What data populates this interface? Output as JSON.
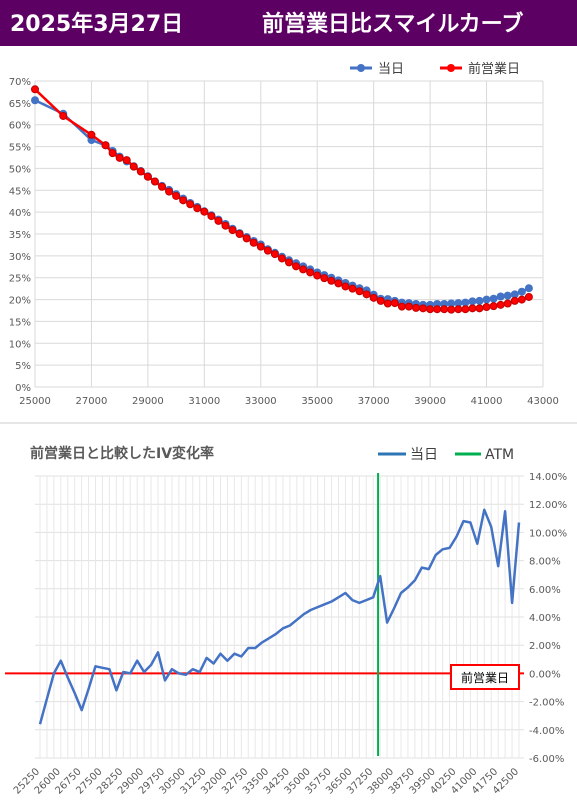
{
  "header": {
    "date": "2025年3月27日",
    "title": "前営業日比スマイルカーブ",
    "background_color": "#5c0063"
  },
  "chart_data": [
    {
      "type": "line",
      "title": "",
      "xlabel": "",
      "ylabel": "",
      "xlim": [
        25000,
        43000
      ],
      "ylim": [
        0,
        0.7
      ],
      "x_ticks": [
        "25000",
        "27000",
        "29000",
        "31000",
        "33000",
        "35000",
        "37000",
        "39000",
        "41000",
        "43000"
      ],
      "y_ticks": [
        "0%",
        "5%",
        "10%",
        "15%",
        "20%",
        "25%",
        "30%",
        "35%",
        "40%",
        "45%",
        "50%",
        "55%",
        "60%",
        "65%",
        "70%"
      ],
      "grid": true,
      "legend_position": "top",
      "series": [
        {
          "name": "当日",
          "color": "#4472c4",
          "x": [
            25000,
            26000,
            27000,
            27500,
            27750,
            28000,
            28250,
            28500,
            28750,
            29000,
            29250,
            29500,
            29750,
            30000,
            30250,
            30500,
            30750,
            31000,
            31250,
            31500,
            31750,
            32000,
            32250,
            32500,
            32750,
            33000,
            33250,
            33500,
            33750,
            34000,
            34250,
            34500,
            34750,
            35000,
            35250,
            35500,
            35750,
            36000,
            36250,
            36500,
            36750,
            37000,
            37250,
            37500,
            37750,
            38000,
            38250,
            38500,
            38750,
            39000,
            39250,
            39500,
            39750,
            40000,
            40250,
            40500,
            40750,
            41000,
            41250,
            41500,
            41750,
            42000,
            42250,
            42500
          ],
          "values": [
            0.656,
            0.625,
            0.565,
            0.553,
            0.54,
            0.527,
            0.516,
            0.505,
            0.494,
            0.482,
            0.47,
            0.46,
            0.451,
            0.441,
            0.431,
            0.421,
            0.412,
            0.402,
            0.393,
            0.383,
            0.373,
            0.362,
            0.352,
            0.343,
            0.334,
            0.326,
            0.315,
            0.307,
            0.298,
            0.29,
            0.283,
            0.276,
            0.269,
            0.262,
            0.256,
            0.25,
            0.244,
            0.238,
            0.232,
            0.226,
            0.221,
            0.211,
            0.202,
            0.201,
            0.197,
            0.193,
            0.192,
            0.19,
            0.188,
            0.188,
            0.19,
            0.19,
            0.191,
            0.192,
            0.193,
            0.196,
            0.197,
            0.2,
            0.202,
            0.207,
            0.209,
            0.212,
            0.218,
            0.226
          ]
        },
        {
          "name": "前営業日",
          "color": "#ff0000",
          "x": [
            25000,
            26000,
            27000,
            27500,
            27750,
            28000,
            28250,
            28500,
            28750,
            29000,
            29250,
            29500,
            29750,
            30000,
            30250,
            30500,
            30750,
            31000,
            31250,
            31500,
            31750,
            32000,
            32250,
            32500,
            32750,
            33000,
            33250,
            33500,
            33750,
            34000,
            34250,
            34500,
            34750,
            35000,
            35250,
            35500,
            35750,
            36000,
            36250,
            36500,
            36750,
            37000,
            37250,
            37500,
            37750,
            38000,
            38250,
            38500,
            38750,
            39000,
            39250,
            39500,
            39750,
            40000,
            40250,
            40500,
            40750,
            41000,
            41250,
            41500,
            41750,
            42000,
            42250,
            42500
          ],
          "values": [
            0.681,
            0.62,
            0.577,
            0.553,
            0.535,
            0.524,
            0.519,
            0.504,
            0.493,
            0.481,
            0.47,
            0.458,
            0.447,
            0.437,
            0.427,
            0.418,
            0.409,
            0.401,
            0.391,
            0.38,
            0.369,
            0.359,
            0.35,
            0.34,
            0.33,
            0.321,
            0.312,
            0.304,
            0.294,
            0.285,
            0.276,
            0.269,
            0.262,
            0.255,
            0.249,
            0.243,
            0.237,
            0.23,
            0.225,
            0.219,
            0.212,
            0.204,
            0.197,
            0.191,
            0.192,
            0.184,
            0.184,
            0.181,
            0.18,
            0.178,
            0.178,
            0.178,
            0.177,
            0.178,
            0.178,
            0.18,
            0.18,
            0.183,
            0.185,
            0.188,
            0.191,
            0.197,
            0.2,
            0.206
          ]
        }
      ]
    },
    {
      "type": "line",
      "title": "前営業日と比較したIV変化率",
      "xlabel": "",
      "ylabel": "",
      "x_categories": [
        "25250",
        "25500",
        "25750",
        "26000",
        "26250",
        "26500",
        "26750",
        "27000",
        "27250",
        "27500",
        "27750",
        "28000",
        "28250",
        "28500",
        "28750",
        "29000",
        "29250",
        "29500",
        "29750",
        "30000",
        "30250",
        "30500",
        "30750",
        "31000",
        "31250",
        "31500",
        "31750",
        "32000",
        "32250",
        "32500",
        "32750",
        "33000",
        "33250",
        "33500",
        "33750",
        "34000",
        "34250",
        "34500",
        "34750",
        "35000",
        "35250",
        "35500",
        "35750",
        "36000",
        "36250",
        "36500",
        "36750",
        "37000",
        "37250",
        "37500",
        "37750",
        "38000",
        "38250",
        "38500",
        "38750",
        "39000",
        "39250",
        "39500",
        "39750",
        "40000",
        "40250",
        "40500",
        "40750",
        "41000",
        "41250",
        "41500",
        "41750",
        "42000",
        "42250",
        "42500"
      ],
      "x_tick_labels_shown": [
        "25250",
        "26000",
        "26750",
        "27500",
        "28250",
        "29000",
        "29750",
        "30500",
        "31250",
        "32000",
        "32750",
        "33500",
        "34250",
        "35000",
        "35750",
        "36500",
        "37250",
        "38000",
        "38750",
        "39500",
        "40250",
        "41000",
        "41750",
        "42500"
      ],
      "ylim": [
        -0.06,
        0.14
      ],
      "y_ticks": [
        "-6.00%",
        "-4.00%",
        "-2.00%",
        "0.00%",
        "2.00%",
        "4.00%",
        "6.00%",
        "8.00%",
        "10.00%",
        "12.00%",
        "14.00%"
      ],
      "grid": true,
      "legend_position": "top-right",
      "atm_x": "37250",
      "reference_label": "前営業日",
      "series": [
        {
          "name": "当日",
          "color": "#4472c4",
          "values": [
            -0.036,
            -0.018,
            0.0,
            0.009,
            -0.003,
            -0.014,
            -0.026,
            -0.011,
            0.005,
            0.004,
            0.003,
            -0.012,
            0.001,
            0.0,
            0.009,
            0.001,
            0.006,
            0.015,
            -0.005,
            0.003,
            0.0,
            -0.001,
            0.003,
            0.001,
            0.011,
            0.007,
            0.014,
            0.009,
            0.014,
            0.012,
            0.018,
            0.018,
            0.022,
            0.025,
            0.028,
            0.032,
            0.034,
            0.038,
            0.042,
            0.045,
            0.047,
            0.049,
            0.051,
            0.054,
            0.057,
            0.052,
            0.05,
            0.052,
            0.054,
            0.069,
            0.036,
            0.046,
            0.057,
            0.061,
            0.066,
            0.075,
            0.074,
            0.084,
            0.088,
            0.089,
            0.097,
            0.108,
            0.107,
            0.092,
            0.116,
            0.104,
            0.076,
            0.115,
            0.05,
            0.107
          ]
        },
        {
          "name": "ATM",
          "color": "#00b050"
        },
        {
          "name": "前営業日",
          "color": "#ff0000",
          "constant": 0
        }
      ]
    }
  ]
}
